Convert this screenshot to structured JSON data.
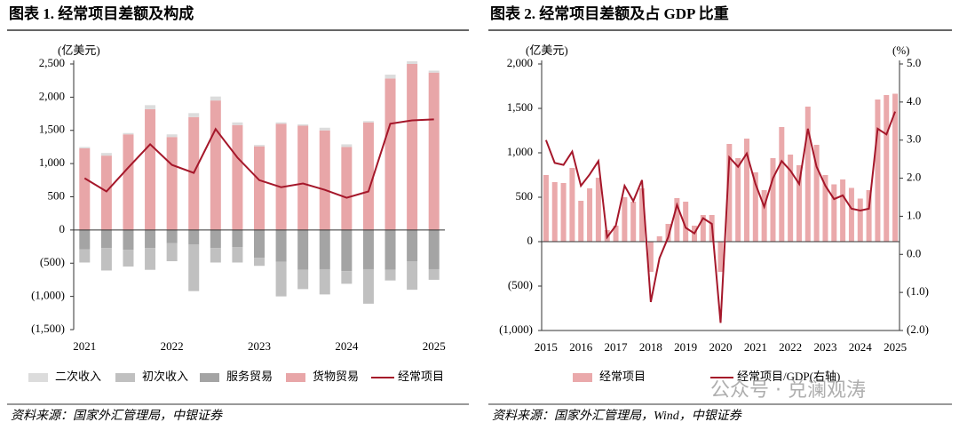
{
  "chart_data": [
    {
      "type": "stacked_bar_line",
      "title": "图表 1. 经常项目差额及构成",
      "y_label": "(亿美元)",
      "source": "资料来源：国家外汇管理局，中银证券",
      "categories": [
        "2021",
        null,
        null,
        null,
        "2022",
        null,
        null,
        null,
        "2023",
        null,
        null,
        null,
        "2024",
        null,
        null,
        null,
        "2025"
      ],
      "ylim": [
        -1500,
        2500
      ],
      "yticks": [
        {
          "value": 2500,
          "label": "2,500"
        },
        {
          "value": 2000,
          "label": "2,000"
        },
        {
          "value": 1500,
          "label": "1,500"
        },
        {
          "value": 1000,
          "label": "1,000"
        },
        500,
        0,
        {
          "value": -500,
          "label": "(500)"
        },
        {
          "value": -1000,
          "label": "(1,000)"
        },
        {
          "value": -1500,
          "label": "(1,500)"
        }
      ],
      "negative_label_color": "#d00000",
      "series": [
        {
          "name": "二次收入",
          "kind": "bar",
          "color": "#dcdcdc",
          "values": [
            20,
            40,
            20,
            60,
            40,
            60,
            60,
            40,
            20,
            20,
            20,
            40,
            40,
            20,
            60,
            40,
            30
          ]
        },
        {
          "name": "初次收入",
          "kind": "bar",
          "color": "#c0c0c0",
          "values": [
            -200,
            -340,
            -250,
            -330,
            -270,
            -700,
            -220,
            -230,
            -120,
            -520,
            -290,
            -380,
            -190,
            -520,
            -160,
            -430,
            -160
          ]
        },
        {
          "name": "服务贸易",
          "kind": "bar",
          "color": "#a4a4a4",
          "values": [
            -290,
            -270,
            -300,
            -270,
            -200,
            -220,
            -270,
            -260,
            -420,
            -480,
            -600,
            -590,
            -620,
            -590,
            -600,
            -470,
            -590
          ]
        },
        {
          "name": "货物贸易",
          "kind": "bar",
          "color": "#e8a6a8",
          "values": [
            1230,
            1120,
            1440,
            1820,
            1400,
            1700,
            1950,
            1580,
            1260,
            1600,
            1570,
            1500,
            1250,
            1620,
            2280,
            2500,
            2370
          ]
        },
        {
          "name": "经常项目",
          "kind": "line",
          "color": "#a5172a",
          "values": [
            780,
            580,
            940,
            1290,
            980,
            860,
            1520,
            1090,
            750,
            645,
            700,
            605,
            485,
            580,
            1600,
            1650,
            1665
          ]
        }
      ]
    },
    {
      "type": "bar_line_dual",
      "title": "图表 2. 经常项目差额及占 GDP 比重",
      "y_label": "(亿美元)",
      "y2_label": "(%)",
      "source": "资料来源：国家外汇管理局，Wind，中银证券",
      "categories": [
        "2015",
        null,
        null,
        null,
        "2016",
        null,
        null,
        null,
        "2017",
        null,
        null,
        null,
        "2018",
        null,
        null,
        null,
        "2019",
        null,
        null,
        null,
        "2020",
        null,
        null,
        null,
        "2021",
        null,
        null,
        null,
        "2022",
        null,
        null,
        null,
        "2023",
        null,
        null,
        null,
        "2024",
        null,
        null,
        null,
        "2025"
      ],
      "ylim": [
        -1000,
        2000
      ],
      "yticks": [
        {
          "value": 2000,
          "label": "2,000"
        },
        {
          "value": 1500,
          "label": "1,500"
        },
        {
          "value": 1000,
          "label": "1,000"
        },
        500,
        0,
        {
          "value": -500,
          "label": "(500)"
        },
        {
          "value": -1000,
          "label": "(1,000)"
        }
      ],
      "y2lim": [
        -2,
        5
      ],
      "y2ticks": [
        {
          "value": 5,
          "label": "5.0"
        },
        {
          "value": 4,
          "label": "4.0"
        },
        {
          "value": 3,
          "label": "3.0"
        },
        {
          "value": 2,
          "label": "2.0"
        },
        {
          "value": 1,
          "label": "1.0"
        },
        {
          "value": 0,
          "label": "0.0"
        },
        {
          "value": -1,
          "label": "(1.0)"
        },
        {
          "value": -2,
          "label": "(2.0)"
        }
      ],
      "negative_label_color": "#d00000",
      "series": [
        {
          "name": "经常项目",
          "kind": "bar",
          "color": "#eaa9ab",
          "values": [
            750,
            670,
            660,
            830,
            460,
            600,
            720,
            130,
            180,
            500,
            450,
            600,
            -340,
            60,
            200,
            490,
            450,
            180,
            300,
            300,
            -340,
            1100,
            940,
            1160,
            780,
            580,
            940,
            1290,
            980,
            860,
            1520,
            1090,
            750,
            645,
            700,
            605,
            485,
            580,
            1600,
            1650,
            1665
          ]
        },
        {
          "name": "经常项目/GDP(右轴)",
          "kind": "line",
          "axis": "y2",
          "color": "#a5172a",
          "values": [
            3.0,
            2.4,
            2.35,
            2.7,
            1.8,
            2.1,
            2.45,
            0.45,
            0.75,
            1.8,
            1.4,
            1.95,
            -1.25,
            -0.1,
            0.45,
            1.3,
            0.7,
            0.55,
            0.95,
            0.8,
            -1.8,
            2.55,
            2.3,
            2.65,
            1.85,
            1.25,
            2.0,
            2.45,
            2.2,
            1.85,
            3.3,
            2.3,
            1.8,
            1.45,
            1.55,
            1.2,
            1.15,
            1.2,
            3.3,
            3.15,
            3.75
          ]
        }
      ]
    }
  ],
  "watermark": "公众号 · 兑澜观涛"
}
